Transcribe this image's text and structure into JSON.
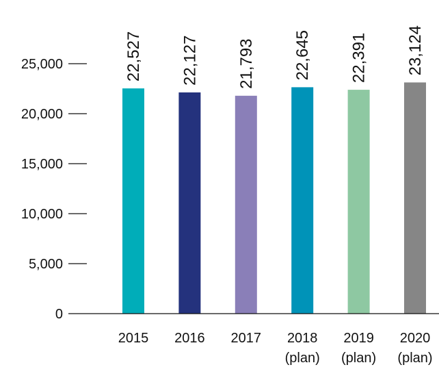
{
  "chart_data": {
    "type": "bar",
    "title": "",
    "xlabel": "",
    "ylabel": "",
    "ylim": [
      0,
      25000
    ],
    "yticks": [
      0,
      5000,
      10000,
      15000,
      20000,
      25000
    ],
    "ytick_labels": [
      "0",
      "5,000",
      "10,000",
      "15,000",
      "20,000",
      "25,000"
    ],
    "grid": false,
    "categories": [
      {
        "line1": "2015",
        "line2": ""
      },
      {
        "line1": "2016",
        "line2": ""
      },
      {
        "line1": "2017",
        "line2": ""
      },
      {
        "line1": "2018",
        "line2": "(plan)"
      },
      {
        "line1": "2019",
        "line2": "(plan)"
      },
      {
        "line1": "2020",
        "line2": "(plan)"
      }
    ],
    "values": [
      22527,
      22127,
      21793,
      22645,
      22391,
      23124
    ],
    "value_labels": [
      "22,527",
      "22,127",
      "21,793",
      "22,645",
      "22,391",
      "23,124"
    ],
    "colors": [
      "#00adb9",
      "#24327d",
      "#8a7fb8",
      "#0093b8",
      "#8ec8a2",
      "#868686"
    ],
    "axis_color": "#111111"
  }
}
